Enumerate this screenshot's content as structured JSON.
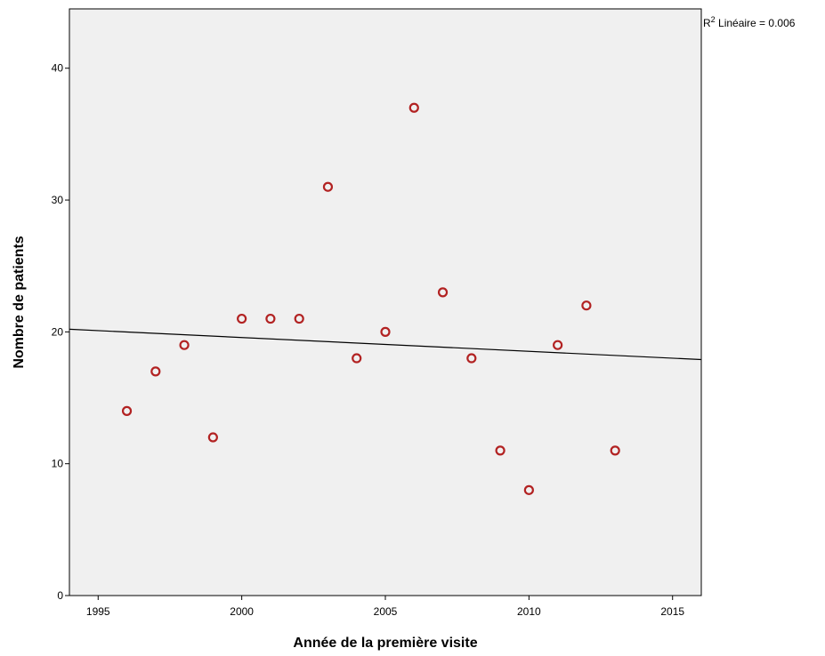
{
  "chart_data": {
    "type": "scatter",
    "title": "",
    "xlabel": "Année de la première visite",
    "ylabel": "Nombre de patients",
    "xlim": [
      1994,
      2016
    ],
    "ylim": [
      0,
      44.5
    ],
    "xticks": [
      1995,
      2000,
      2005,
      2010,
      2015
    ],
    "yticks": [
      0,
      10,
      20,
      30,
      40
    ],
    "grid": false,
    "background_color": "#f0f0f0",
    "marker_color": "#b22222",
    "series": [
      {
        "x": [
          1996,
          1997,
          1998,
          1999,
          2000,
          2001,
          2002,
          2003,
          2004,
          2005,
          2006,
          2007,
          2008,
          2009,
          2010,
          2011,
          2012,
          2013
        ],
        "y": [
          14,
          17,
          19,
          12,
          21,
          21,
          21,
          31,
          18,
          20,
          37,
          23,
          18,
          11,
          8,
          19,
          22,
          11
        ]
      }
    ],
    "fit_line": {
      "x": [
        1994,
        2016
      ],
      "y": [
        20.2,
        17.9
      ],
      "r2_prefix": "R",
      "r2_superscript": "2",
      "r2_text": " Linéaire = 0.006"
    }
  }
}
